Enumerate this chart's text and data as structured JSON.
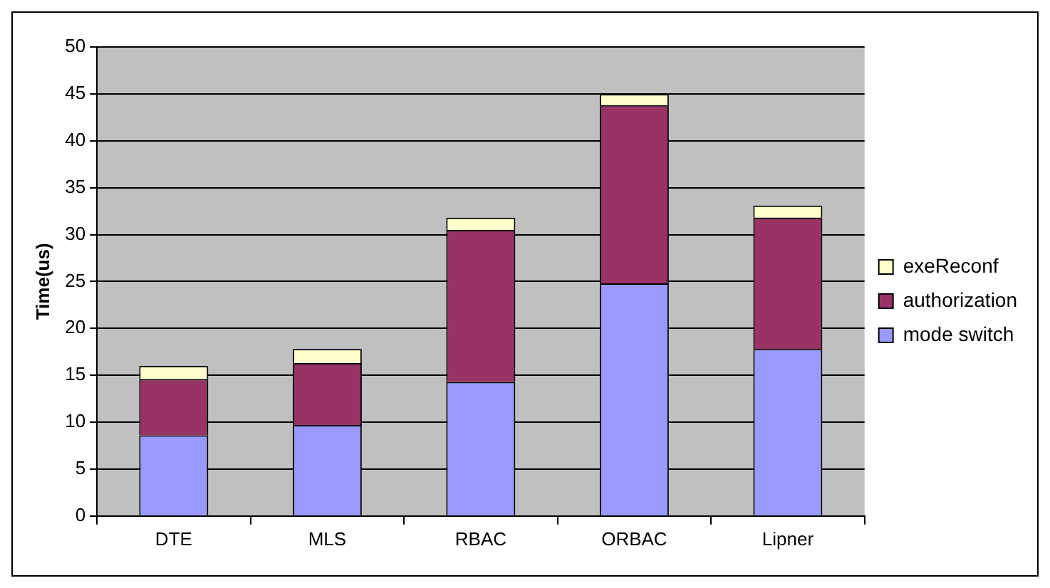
{
  "chart_data": {
    "type": "bar",
    "stacked": true,
    "ylabel": "Time(us)",
    "categories": [
      "DTE",
      "MLS",
      "RBAC",
      "ORBAC",
      "Lipner"
    ],
    "series": [
      {
        "name": "mode switch",
        "color": "#9999ff",
        "values": [
          8.6,
          9.7,
          14.3,
          24.8,
          17.8
        ]
      },
      {
        "name": "authorization",
        "color": "#993366",
        "values": [
          6.0,
          6.6,
          16.2,
          19.0,
          14.0
        ]
      },
      {
        "name": "exeReconf",
        "color": "#ffffcc",
        "values": [
          1.4,
          1.5,
          1.3,
          1.2,
          1.3
        ]
      }
    ],
    "ylim": [
      0,
      50
    ],
    "yticks": [
      0,
      5,
      10,
      15,
      20,
      25,
      30,
      35,
      40,
      45,
      50
    ],
    "grid": "y",
    "legend": "right"
  }
}
